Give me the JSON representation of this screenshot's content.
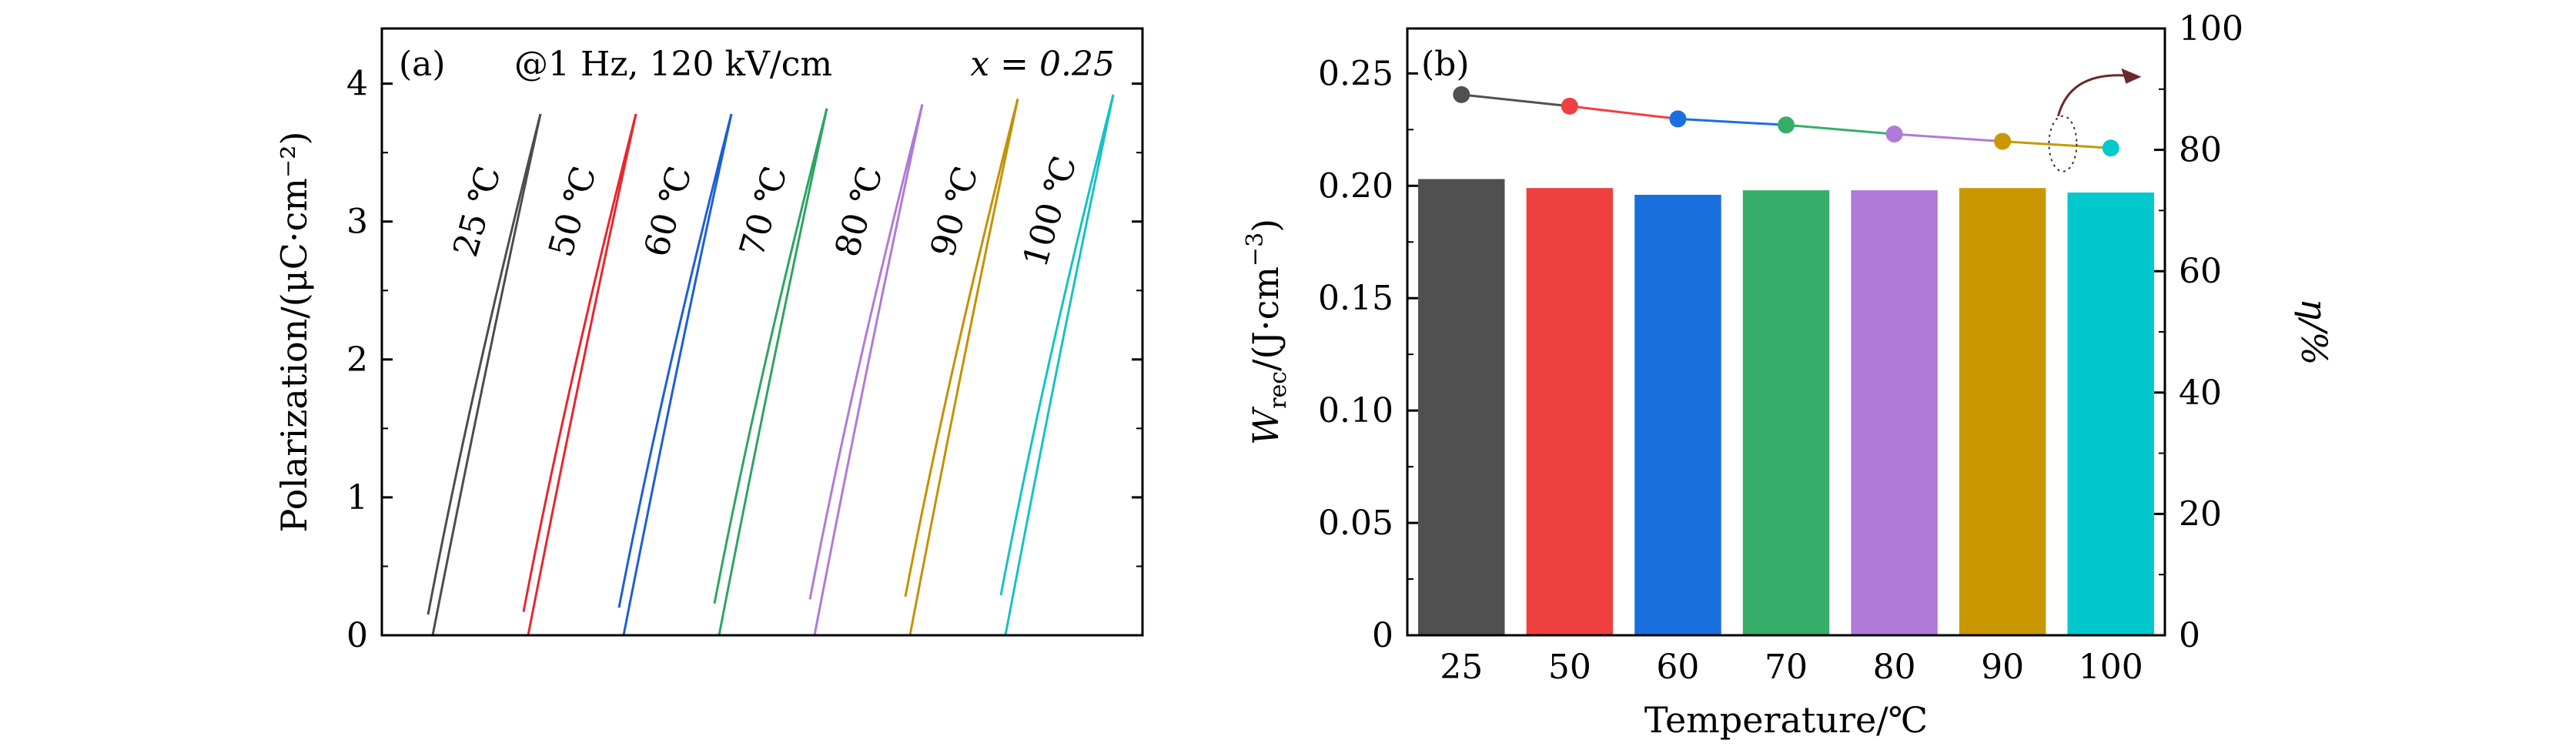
{
  "chart_data": [
    {
      "type": "line",
      "panel_label": "(a)",
      "title": "@1 Hz, 120 kV/cm",
      "composition_label": "x = 0.25",
      "xlabel": "",
      "ylabel": "Polarization/(μC·cm⁻²)",
      "xlim": [
        0,
        8
      ],
      "ylim": [
        0,
        4.4
      ],
      "yticks": [
        "0",
        "1",
        "2",
        "3",
        "4"
      ],
      "series": [
        {
          "name": "25 ℃",
          "color": "#4d4d4d",
          "p_min": 0.0,
          "p_max": 3.78,
          "p_r": 0.15
        },
        {
          "name": "50 ℃",
          "color": "#e8262d",
          "p_min": 0.0,
          "p_max": 3.78,
          "p_r": 0.17
        },
        {
          "name": "60 ℃",
          "color": "#1d5fd6",
          "p_min": 0.0,
          "p_max": 3.78,
          "p_r": 0.2
        },
        {
          "name": "70 ℃",
          "color": "#2ea462",
          "p_min": 0.0,
          "p_max": 3.82,
          "p_r": 0.23
        },
        {
          "name": "80 ℃",
          "color": "#b07ad8",
          "p_min": 0.0,
          "p_max": 3.85,
          "p_r": 0.26
        },
        {
          "name": "90 ℃",
          "color": "#c49100",
          "p_min": 0.0,
          "p_max": 3.89,
          "p_r": 0.28
        },
        {
          "name": "100 ℃",
          "color": "#17c1c4",
          "p_min": 0.0,
          "p_max": 3.92,
          "p_r": 0.29
        }
      ]
    },
    {
      "type": "bar",
      "panel_label": "(b)",
      "xlabel": "Temperature/℃",
      "ylabel_main": "W",
      "ylabel_sub": "rec",
      "ylabel_rest": "/(J·cm",
      "ylabel_sup": "−3",
      "ylabel_close": ")",
      "y2label": "η/%",
      "categories": [
        "25",
        "50",
        "60",
        "70",
        "80",
        "90",
        "100"
      ],
      "values": [
        0.203,
        0.199,
        0.196,
        0.198,
        0.198,
        0.199,
        0.197
      ],
      "bar_colors": [
        "#505050",
        "#ef4040",
        "#1a6fde",
        "#37ad6a",
        "#b07ad8",
        "#c99800",
        "#00c8cc"
      ],
      "ylim": [
        0,
        0.27
      ],
      "yticks": [
        "0",
        "0.05",
        "0.10",
        "0.15",
        "0.20",
        "0.25"
      ],
      "efficiency": {
        "values": [
          89.1,
          87.2,
          85.1,
          84.1,
          82.6,
          81.4,
          80.3
        ],
        "colors": [
          "#505050",
          "#ef4040",
          "#1a6fde",
          "#37ad6a",
          "#b07ad8",
          "#c99800",
          "#00c8cc"
        ],
        "y2lim": [
          0,
          100
        ],
        "y2ticks": [
          "0",
          "20",
          "40",
          "60",
          "80",
          "100"
        ]
      }
    }
  ]
}
